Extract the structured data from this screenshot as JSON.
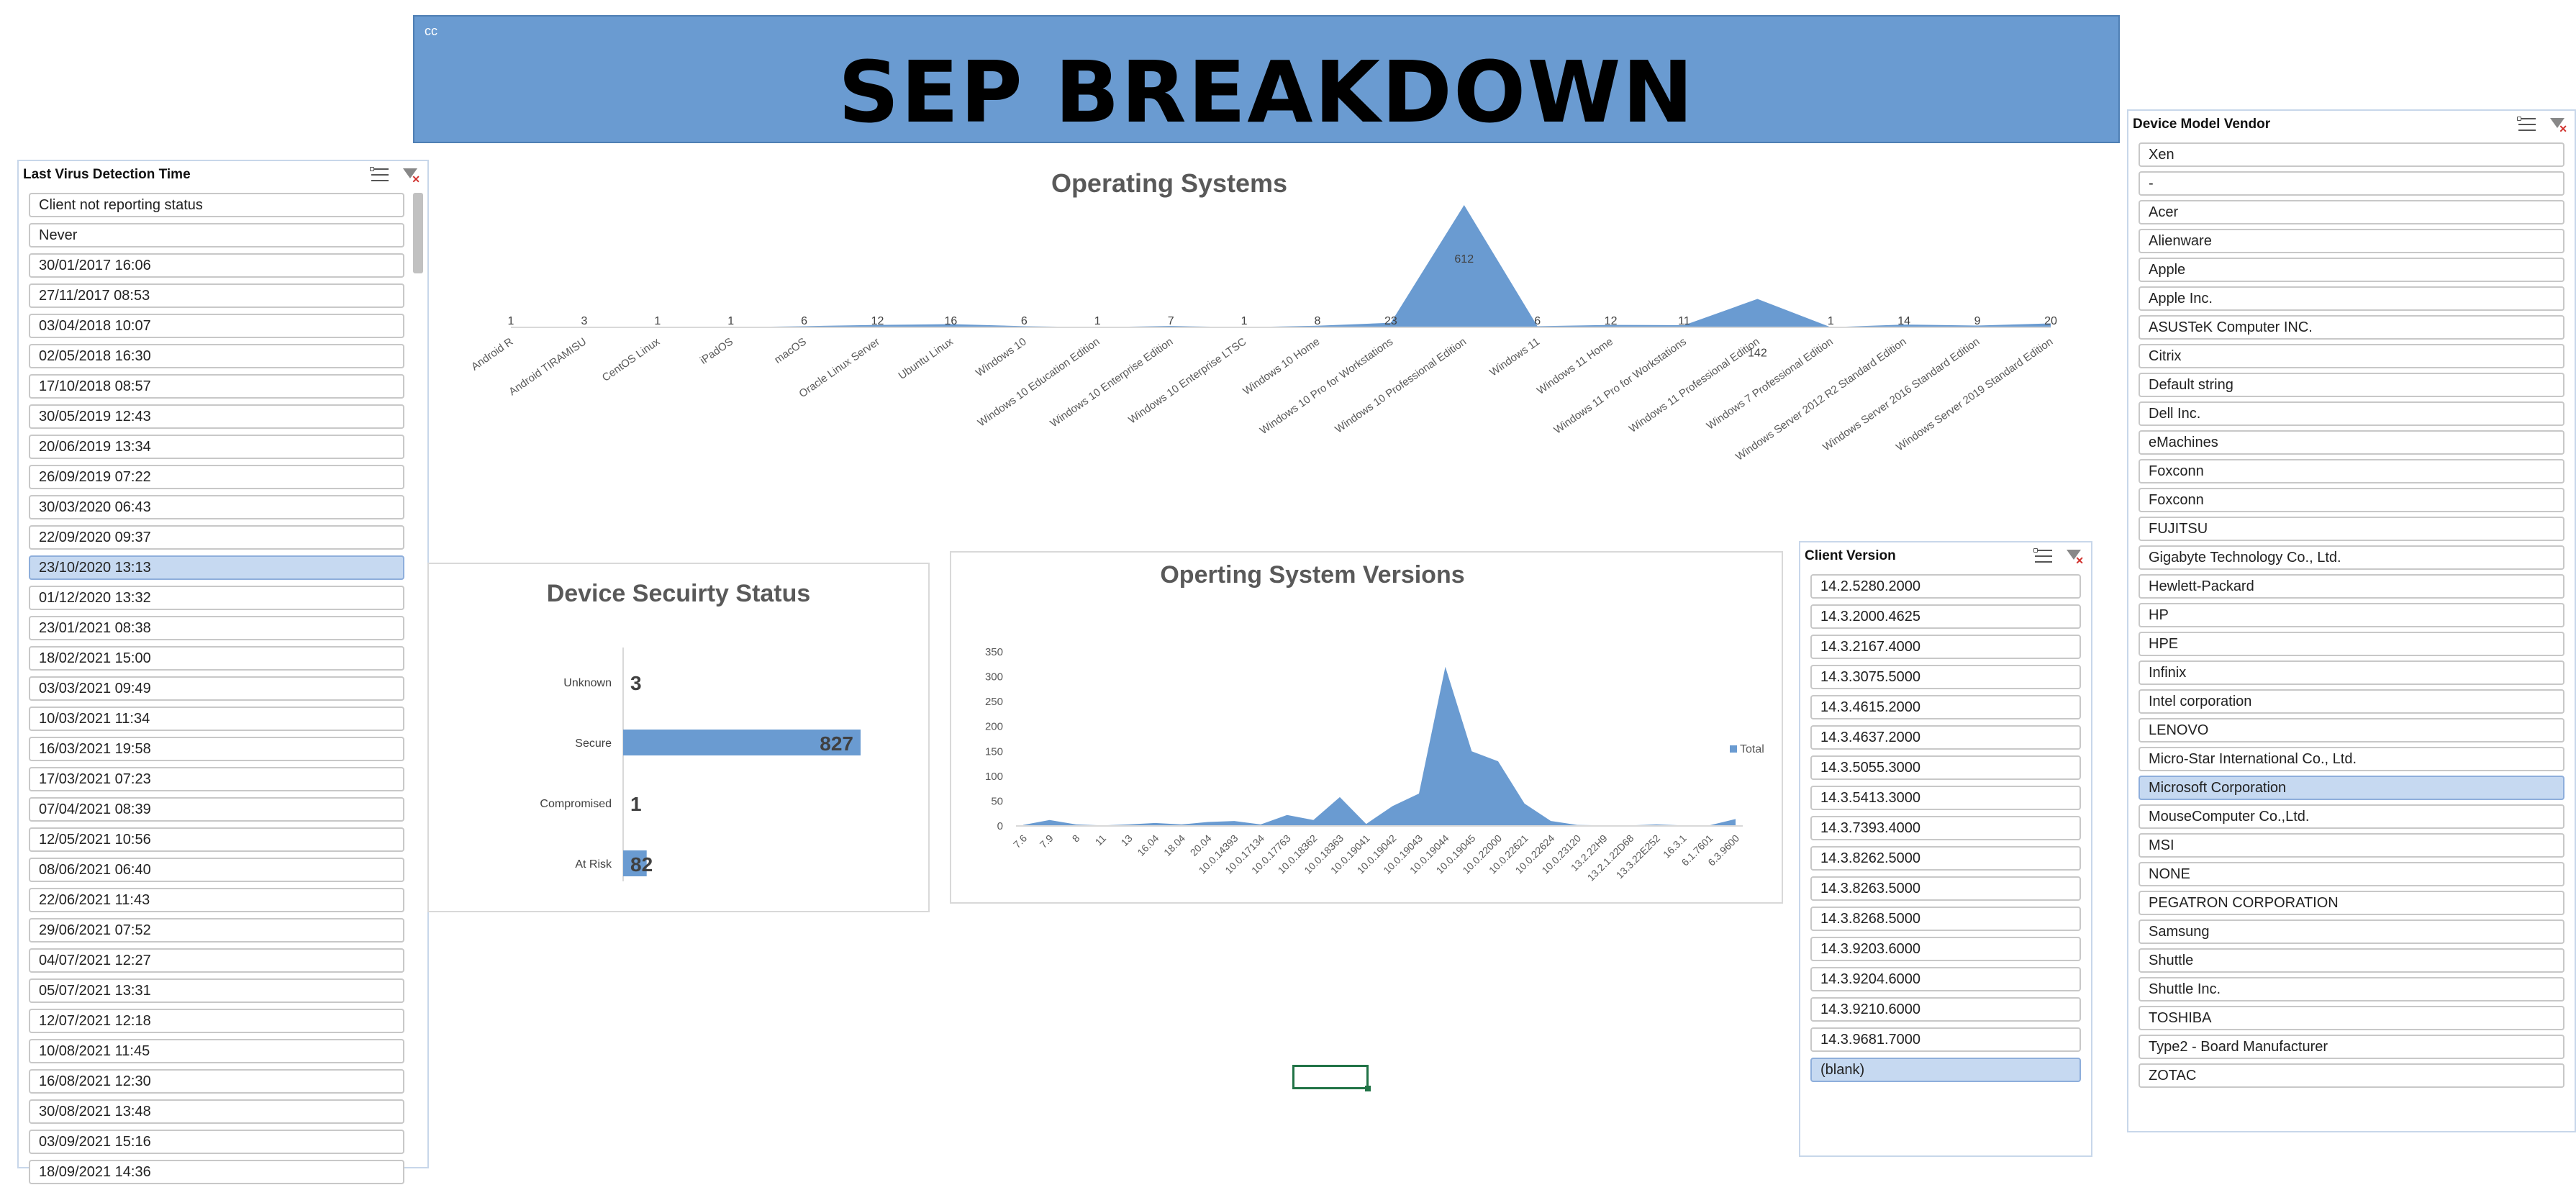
{
  "banner": {
    "corner": "cc",
    "title": "SEP BREAKDOWN"
  },
  "slicer_virus": {
    "title": "Last Virus Detection Time",
    "items": [
      "Client not reporting status",
      "Never",
      "30/01/2017 16:06",
      "27/11/2017 08:53",
      "03/04/2018 10:07",
      "02/05/2018 16:30",
      "17/10/2018 08:57",
      "30/05/2019 12:43",
      "20/06/2019 13:34",
      "26/09/2019 07:22",
      "30/03/2020 06:43",
      "22/09/2020 09:37",
      "23/10/2020 13:13",
      "01/12/2020 13:32",
      "23/01/2021 08:38",
      "18/02/2021 15:00",
      "03/03/2021 09:49",
      "10/03/2021 11:34",
      "16/03/2021 19:58",
      "17/03/2021 07:23",
      "07/04/2021 08:39",
      "12/05/2021 10:56",
      "08/06/2021 06:40",
      "22/06/2021 11:43",
      "29/06/2021 07:52",
      "04/07/2021 12:27",
      "05/07/2021 13:31",
      "12/07/2021 12:18",
      "10/08/2021 11:45",
      "16/08/2021 12:30",
      "30/08/2021 13:48",
      "03/09/2021 15:16",
      "18/09/2021 14:36"
    ],
    "selected_index": 12
  },
  "slicer_client": {
    "title": "Client Version",
    "items": [
      "14.2.5280.2000",
      "14.3.2000.4625",
      "14.3.2167.4000",
      "14.3.3075.5000",
      "14.3.4615.2000",
      "14.3.4637.2000",
      "14.3.5055.3000",
      "14.3.5413.3000",
      "14.3.7393.4000",
      "14.3.8262.5000",
      "14.3.8263.5000",
      "14.3.8268.5000",
      "14.3.9203.6000",
      "14.3.9204.6000",
      "14.3.9210.6000",
      "14.3.9681.7000",
      "(blank)"
    ],
    "selected_index": 16
  },
  "slicer_vendor": {
    "title": "Device Model Vendor",
    "items": [
      "Xen",
      "-",
      "Acer",
      "Alienware",
      "Apple",
      "Apple Inc.",
      "ASUSTeK  Computer INC.",
      "Citrix",
      "Default string",
      "Dell Inc.",
      "eMachines",
      "Foxconn",
      "Foxconn",
      "FUJITSU",
      "Gigabyte Technology Co., Ltd.",
      "Hewlett-Packard",
      "HP",
      "HPE",
      "Infinix",
      "Intel corporation",
      "LENOVO",
      "Micro-Star International Co., Ltd.",
      "Microsoft Corporation",
      "MouseComputer Co.,Ltd.",
      "MSI",
      "NONE",
      "PEGATRON  CORPORATION",
      "Samsung",
      "Shuttle",
      "Shuttle Inc.",
      "TOSHIBA",
      "Type2 - Board Manufacturer",
      "ZOTAC"
    ],
    "selected_index": 22
  },
  "chart_data": [
    {
      "type": "area",
      "title": "Operating Systems",
      "categories": [
        "Android R",
        "Android TIRAMISU",
        "CentOS Linux",
        "iPadOS",
        "macOS",
        "Oracle Linux Server",
        "Ubuntu Linux",
        "Windows 10",
        "Windows 10 Education Edition",
        "Windows 10 Enterprise Edition",
        "Windows 10 Enterprise LTSC",
        "Windows 10 Home",
        "Windows 10 Pro for Workstations",
        "Windows 10 Professional Edition",
        "Windows 11",
        "Windows 11 Home",
        "Windows 11 Pro for Workstations",
        "Windows 11 Professional Edition",
        "Windows 7 Professional Edition",
        "Windows Server 2012 R2 Standard Edition",
        "Windows Server 2016 Standard Edition",
        "Windows Server 2019 Standard Edition"
      ],
      "values": [
        1,
        3,
        1,
        1,
        6,
        12,
        16,
        6,
        1,
        7,
        1,
        8,
        23,
        612,
        6,
        12,
        11,
        142,
        1,
        14,
        9,
        20
      ],
      "color": "#6a9bd1"
    },
    {
      "type": "bar",
      "orientation": "horizontal",
      "title": "Device Secuirty Status",
      "categories": [
        "Unknown",
        "Secure",
        "Compromised",
        "At Risk"
      ],
      "values": [
        3,
        827,
        1,
        82
      ],
      "color": "#6a9bd1"
    },
    {
      "type": "area",
      "title": "Operting System Versions",
      "categories": [
        "7.6",
        "7.9",
        "8",
        "11",
        "13",
        "16.04",
        "18.04",
        "20.04",
        "10.0.14393",
        "10.0.17134",
        "10.0.17763",
        "10.0.18362",
        "10.0.18363",
        "10.0.19041",
        "10.0.19042",
        "10.0.19043",
        "10.0.19044",
        "10.0.19045",
        "10.0.22000",
        "10.0.22621",
        "10.0.22624",
        "10.0.23120",
        "13.2.22H9",
        "13.2.1.22D68",
        "13.3.22E252",
        "16.3.1",
        "6.1.7601",
        "6.3.9600"
      ],
      "values": [
        2,
        12,
        3,
        1,
        3,
        6,
        3,
        8,
        10,
        3,
        22,
        12,
        58,
        4,
        40,
        65,
        320,
        150,
        130,
        45,
        10,
        2,
        1,
        1,
        3,
        1,
        1,
        14
      ],
      "yticks": [
        0,
        50,
        100,
        150,
        200,
        250,
        300,
        350
      ],
      "ylim": [
        0,
        350
      ],
      "legend": "Total",
      "legend_position": "right",
      "color": "#6a9bd1"
    }
  ]
}
